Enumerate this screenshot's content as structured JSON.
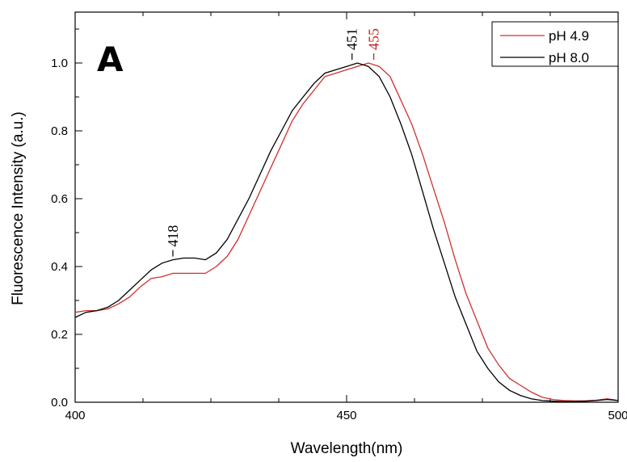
{
  "chart_data": {
    "type": "line",
    "panel_label": "A",
    "xlabel": "Wavelength(nm)",
    "ylabel": "Fluorescence Intensity (a.u.)",
    "xlim": [
      400,
      500
    ],
    "ylim": [
      0,
      1.15
    ],
    "x_ticks": [
      400,
      450,
      500
    ],
    "x_tick_labels": [
      "400",
      "450",
      "500"
    ],
    "y_ticks": [
      0.0,
      0.2,
      0.4,
      0.6,
      0.8,
      1.0
    ],
    "y_tick_labels": [
      "0.0",
      "0.2",
      "0.4",
      "0.6",
      "0.8",
      "1.0"
    ],
    "legend_position": "top-right",
    "series": [
      {
        "name": "pH 4.9",
        "color": "#d03030",
        "x": [
          400,
          402,
          404,
          406,
          408,
          410,
          412,
          414,
          416,
          418,
          420,
          422,
          424,
          426,
          428,
          430,
          432,
          434,
          436,
          438,
          440,
          442,
          444,
          446,
          448,
          450,
          452,
          454,
          456,
          458,
          460,
          462,
          464,
          466,
          468,
          470,
          472,
          474,
          476,
          478,
          480,
          482,
          484,
          486,
          488,
          490,
          492,
          494,
          496,
          498,
          500
        ],
        "y": [
          0.265,
          0.27,
          0.27,
          0.275,
          0.29,
          0.31,
          0.34,
          0.365,
          0.37,
          0.38,
          0.38,
          0.38,
          0.38,
          0.4,
          0.43,
          0.48,
          0.55,
          0.62,
          0.69,
          0.76,
          0.83,
          0.88,
          0.92,
          0.96,
          0.97,
          0.98,
          0.99,
          1.0,
          0.99,
          0.96,
          0.89,
          0.82,
          0.73,
          0.63,
          0.53,
          0.42,
          0.32,
          0.24,
          0.16,
          0.11,
          0.07,
          0.05,
          0.03,
          0.015,
          0.008,
          0.005,
          0.004,
          0.004,
          0.006,
          0.01,
          0.005
        ]
      },
      {
        "name": "pH 8.0",
        "color": "#000000",
        "x": [
          400,
          402,
          404,
          406,
          408,
          410,
          412,
          414,
          416,
          418,
          420,
          422,
          424,
          426,
          428,
          430,
          432,
          434,
          436,
          438,
          440,
          442,
          444,
          446,
          448,
          450,
          452,
          454,
          456,
          458,
          460,
          462,
          464,
          466,
          468,
          470,
          472,
          474,
          476,
          478,
          480,
          482,
          484,
          486,
          488,
          490,
          492,
          494,
          496,
          498,
          500
        ],
        "y": [
          0.25,
          0.265,
          0.27,
          0.28,
          0.3,
          0.33,
          0.36,
          0.39,
          0.41,
          0.42,
          0.425,
          0.425,
          0.42,
          0.44,
          0.48,
          0.54,
          0.6,
          0.67,
          0.74,
          0.8,
          0.86,
          0.9,
          0.94,
          0.97,
          0.98,
          0.99,
          1.0,
          0.99,
          0.96,
          0.9,
          0.82,
          0.73,
          0.62,
          0.51,
          0.41,
          0.31,
          0.23,
          0.15,
          0.1,
          0.06,
          0.035,
          0.02,
          0.01,
          0.005,
          0.003,
          0.002,
          0.002,
          0.003,
          0.005,
          0.008,
          0.005
        ]
      }
    ],
    "annotations": [
      {
        "text": "418",
        "x": 418,
        "y": 0.42,
        "color": "#000000"
      },
      {
        "text": "451",
        "x": 451,
        "y": 1.0,
        "color": "#000000"
      },
      {
        "text": "455",
        "x": 455,
        "y": 1.0,
        "color": "#c02020"
      }
    ]
  }
}
